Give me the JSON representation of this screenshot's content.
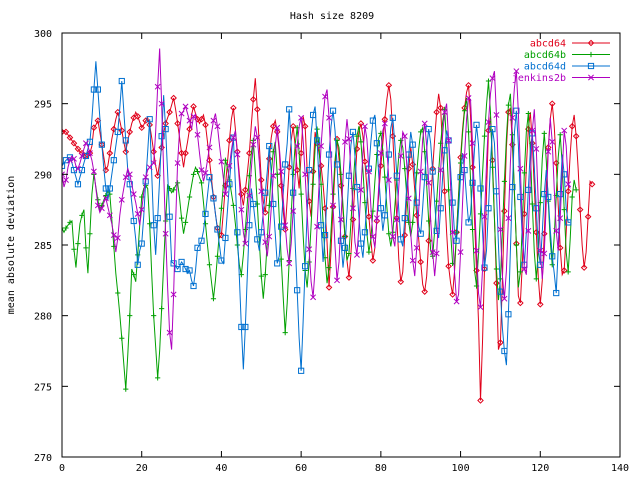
{
  "chart_data": {
    "type": "line",
    "title": "Hash size 8209",
    "xlabel": "",
    "ylabel": "mean absolute deviation",
    "xlim": [
      0,
      140
    ],
    "ylim": [
      270,
      300
    ],
    "xticks": [
      0,
      20,
      40,
      60,
      80,
      100,
      120,
      140
    ],
    "yticks": [
      270,
      275,
      280,
      285,
      290,
      295,
      300
    ],
    "xtick_labels": [
      "0",
      "20",
      "40",
      "60",
      "80",
      "100",
      "120",
      "140"
    ],
    "ytick_labels": [
      "270",
      "275",
      "280",
      "285",
      "290",
      "295",
      "300"
    ],
    "grid": false,
    "legend_position": "top-right",
    "x_start": 0,
    "x_step": 0.5,
    "series": [
      {
        "name": "abcd64",
        "color": "#e0001a",
        "marker": "diamond",
        "values": [
          293.0,
          293.1,
          293.0,
          292.8,
          292.6,
          292.4,
          292.2,
          292.0,
          291.8,
          291.6,
          291.5,
          291.4,
          291.3,
          291.2,
          291.5,
          292.0,
          293.3,
          293.5,
          293.8,
          293.0,
          292.1,
          291.2,
          290.3,
          290.6,
          291.5,
          292.5,
          293.2,
          293.9,
          294.4,
          293.8,
          293.1,
          292.3,
          291.6,
          292.4,
          293.0,
          293.6,
          294.0,
          294.4,
          294.1,
          293.7,
          293.3,
          293.5,
          293.8,
          294.0,
          293.5,
          292.6,
          291.6,
          290.6,
          289.9,
          290.8,
          291.9,
          292.9,
          293.6,
          294.0,
          294.4,
          294.9,
          295.4,
          294.6,
          293.6,
          292.6,
          291.5,
          290.5,
          291.5,
          292.3,
          293.2,
          294.2,
          294.8,
          294.3,
          293.9,
          293.6,
          293.9,
          294.2,
          293.5,
          292.3,
          291.0,
          289.7,
          288.4,
          287.2,
          286.2,
          285.5,
          285.7,
          287.4,
          289.2,
          290.8,
          292.4,
          293.9,
          294.7,
          293.2,
          291.6,
          290.0,
          288.6,
          287.8,
          288.9,
          290.1,
          291.5,
          293.5,
          295.3,
          296.8,
          294.6,
          292.1,
          289.6,
          288.1,
          287.3,
          288.8,
          291.1,
          292.6,
          293.4,
          293.8,
          293.0,
          291.7,
          289.2,
          287.4,
          286.1,
          288.2,
          290.5,
          292.4,
          293.4,
          292.0,
          290.3,
          289.0,
          291.5,
          294.1,
          293.4,
          290.4,
          288.1,
          287.0,
          290.2,
          293.0,
          292.2,
          291.5,
          290.6,
          289.3,
          287.6,
          285.2,
          282.0,
          284.6,
          287.7,
          290.4,
          292.5,
          291.1,
          289.2,
          287.4,
          285.6,
          283.9,
          282.7,
          284.4,
          286.8,
          289.4,
          291.8,
          293.0,
          293.6,
          292.7,
          290.9,
          289.0,
          287.0,
          285.3,
          283.9,
          284.8,
          286.7,
          288.7,
          290.6,
          292.2,
          293.9,
          295.3,
          296.3,
          295.3,
          292.7,
          289.7,
          286.9,
          284.0,
          282.4,
          283.1,
          285.7,
          288.4,
          290.4,
          291.9,
          290.7,
          288.9,
          287.1,
          285.4,
          283.8,
          282.2,
          281.7,
          282.8,
          285.3,
          287.9,
          290.4,
          292.5,
          294.4,
          295.7,
          294.7,
          291.7,
          288.8,
          285.9,
          283.5,
          282.3,
          281.5,
          283.2,
          285.9,
          288.6,
          291.2,
          293.2,
          294.7,
          295.8,
          296.3,
          294.1,
          290.5,
          286.8,
          283.2,
          279.6,
          274.0,
          278.1,
          283.3,
          288.6,
          293.1,
          294.1,
          291.0,
          287.0,
          282.3,
          277.6,
          278.1,
          282.6,
          287.4,
          291.9,
          294.4,
          294.7,
          292.1,
          288.7,
          285.1,
          281.4,
          280.9,
          283.7,
          287.2,
          290.5,
          293.2,
          294.4,
          292.2,
          289.1,
          285.9,
          282.7,
          280.8,
          282.5,
          285.8,
          289.1,
          291.9,
          293.9,
          295.0,
          293.4,
          290.8,
          287.8,
          284.8,
          282.9,
          283.2,
          285.9,
          288.8,
          291.4,
          293.4,
          294.2,
          292.7,
          290.4,
          287.5,
          285.0,
          283.4,
          284.5,
          287.0,
          289.5,
          289.3
        ]
      },
      {
        "name": "abcd64b",
        "color": "#00a000",
        "marker": "plus",
        "values": [
          286.2,
          285.9,
          286.2,
          286.4,
          286.6,
          286.7,
          284.7,
          283.4,
          285.1,
          286.5,
          287.1,
          287.5,
          284.8,
          283.0,
          285.8,
          288.6,
          290.0,
          289.1,
          288.2,
          287.4,
          287.8,
          288.2,
          288.5,
          288.8,
          288.6,
          286.8,
          284.9,
          283.0,
          281.6,
          280.1,
          278.4,
          276.6,
          274.8,
          277.2,
          280.0,
          283.3,
          282.9,
          282.4,
          284.3,
          286.4,
          288.4,
          289.0,
          289.2,
          289.0,
          286.5,
          283.0,
          280.0,
          277.8,
          275.6,
          277.5,
          280.5,
          283.6,
          286.7,
          289.3,
          289.0,
          288.7,
          288.9,
          289.2,
          289.4,
          288.3,
          286.9,
          285.8,
          286.6,
          287.5,
          288.4,
          289.2,
          290.0,
          290.5,
          290.2,
          289.8,
          289.4,
          288.0,
          286.5,
          285.0,
          283.6,
          282.4,
          281.2,
          282.5,
          284.2,
          285.9,
          287.6,
          289.3,
          291.0,
          290.5,
          289.6,
          288.7,
          287.8,
          286.5,
          285.0,
          283.6,
          282.9,
          284.3,
          286.1,
          288.0,
          289.9,
          291.5,
          292.4,
          290.2,
          287.9,
          285.3,
          282.8,
          281.2,
          282.9,
          285.3,
          287.8,
          290.1,
          291.6,
          292.3,
          290.0,
          287.0,
          284.0,
          281.3,
          278.8,
          280.9,
          283.9,
          287.1,
          290.0,
          292.1,
          293.3,
          291.5,
          288.6,
          285.7,
          283.2,
          282.0,
          283.8,
          286.4,
          289.3,
          291.8,
          293.2,
          292.0,
          289.3,
          286.6,
          284.1,
          282.3,
          283.4,
          286.0,
          288.6,
          291.0,
          292.4,
          291.9,
          290.0,
          287.8,
          285.6,
          283.9,
          284.4,
          286.6,
          289.0,
          291.2,
          292.7,
          293.4,
          292.3,
          290.3,
          288.0,
          285.8,
          284.5,
          285.4,
          287.4,
          289.5,
          291.4,
          292.6,
          292.9,
          291.7,
          289.8,
          287.7,
          285.8,
          284.9,
          285.9,
          287.7,
          289.6,
          291.3,
          292.4,
          291.9,
          290.4,
          288.5,
          286.6,
          285.6,
          286.6,
          288.3,
          290.1,
          291.8,
          293.0,
          293.3,
          291.6,
          289.2,
          286.7,
          284.6,
          284.2,
          286.0,
          288.1,
          290.2,
          292.2,
          293.7,
          294.6,
          292.1,
          288.9,
          285.9,
          283.7,
          283.6,
          285.9,
          288.4,
          290.8,
          292.9,
          294.5,
          295.4,
          293.0,
          289.6,
          286.1,
          283.2,
          282.1,
          284.4,
          287.2,
          290.0,
          292.7,
          294.9,
          296.6,
          294.4,
          290.5,
          286.8,
          283.3,
          281.1,
          282.6,
          286.0,
          289.5,
          292.6,
          294.9,
          295.7,
          292.8,
          288.8,
          285.0,
          282.0,
          283.1,
          286.5,
          290.1,
          293.0,
          294.3,
          291.6,
          287.9,
          284.5,
          282.6,
          284.6,
          288.0,
          291.1,
          292.9,
          291.0,
          288.1,
          285.3,
          283.6,
          285.6,
          288.5,
          291.2,
          292.8,
          290.7,
          287.5,
          284.5,
          283.1,
          285.4,
          288.4,
          289.6,
          288.9
        ]
      },
      {
        "name": "abcd64d",
        "color": "#0070d0",
        "marker": "square",
        "values": [
          290.6,
          290.8,
          291.0,
          291.1,
          291.2,
          290.8,
          290.3,
          289.8,
          289.3,
          289.8,
          290.3,
          290.8,
          291.3,
          291.8,
          292.3,
          293.9,
          296.0,
          298.0,
          296.0,
          294.0,
          292.1,
          290.4,
          289.0,
          288.2,
          289.0,
          290.0,
          291.0,
          292.0,
          293.0,
          294.7,
          296.6,
          294.5,
          292.4,
          290.3,
          289.3,
          288.0,
          286.7,
          285.4,
          283.6,
          284.6,
          285.1,
          287.0,
          289.5,
          291.6,
          293.9,
          290.1,
          286.4,
          284.3,
          286.9,
          289.7,
          292.7,
          295.6,
          293.2,
          290.1,
          287.0,
          283.8,
          283.7,
          283.5,
          283.3,
          283.5,
          283.8,
          283.6,
          283.3,
          283.0,
          283.2,
          282.5,
          282.1,
          283.2,
          284.8,
          285.0,
          285.3,
          286.0,
          287.2,
          288.5,
          289.8,
          289.4,
          288.3,
          287.2,
          286.1,
          285.0,
          283.9,
          283.7,
          285.5,
          287.4,
          289.3,
          291.2,
          292.6,
          289.3,
          285.9,
          282.7,
          279.2,
          276.2,
          279.2,
          282.9,
          286.4,
          289.0,
          287.9,
          286.6,
          285.4,
          284.6,
          285.9,
          287.3,
          288.7,
          290.2,
          292.0,
          290.1,
          287.9,
          285.8,
          283.7,
          284.2,
          286.3,
          288.6,
          290.7,
          292.2,
          294.6,
          292.1,
          288.7,
          285.2,
          281.8,
          278.4,
          276.1,
          279.6,
          283.5,
          287.2,
          290.3,
          292.9,
          294.2,
          294.8,
          292.4,
          289.4,
          286.4,
          283.8,
          285.7,
          288.6,
          291.4,
          293.4,
          294.5,
          293.1,
          290.7,
          288.0,
          285.3,
          283.4,
          284.8,
          287.3,
          289.9,
          292.1,
          293.0,
          291.3,
          289.1,
          287.0,
          285.1,
          284.1,
          285.9,
          288.1,
          290.4,
          292.3,
          293.8,
          294.2,
          292.2,
          289.8,
          287.6,
          286.0,
          287.1,
          289.2,
          291.4,
          293.3,
          294.0,
          292.2,
          289.9,
          287.5,
          285.4,
          284.9,
          286.9,
          289.2,
          291.4,
          293.0,
          292.1,
          290.1,
          288.0,
          286.3,
          285.8,
          287.7,
          289.8,
          291.8,
          293.2,
          292.2,
          290.2,
          288.0,
          286.0,
          285.5,
          287.6,
          289.8,
          291.7,
          293.1,
          292.4,
          290.4,
          288.0,
          285.8,
          285.3,
          287.5,
          289.8,
          291.5,
          290.3,
          288.3,
          286.6,
          287.2,
          289.4,
          291.8,
          293.5,
          292.1,
          289.0,
          286.0,
          283.4,
          284.6,
          287.6,
          290.8,
          293.2,
          292.2,
          288.8,
          285.0,
          281.7,
          279.1,
          277.5,
          276.5,
          280.1,
          284.6,
          289.1,
          292.9,
          294.5,
          292.1,
          288.4,
          285.4,
          283.6,
          285.9,
          288.9,
          291.7,
          292.9,
          290.5,
          287.6,
          284.8,
          283.6,
          285.9,
          288.6,
          290.3,
          288.4,
          286.1,
          284.2,
          283.0,
          281.6,
          284.8,
          288.6,
          291.4,
          290.0,
          287.6,
          286.6,
          286.6
        ]
      },
      {
        "name": "jenkins2b",
        "color": "#b000c0",
        "marker": "cross",
        "values": [
          290.0,
          289.1,
          289.6,
          290.5,
          291.0,
          291.3,
          291.1,
          290.6,
          290.4,
          290.8,
          291.3,
          291.8,
          292.2,
          292.0,
          291.5,
          291.0,
          290.2,
          289.0,
          287.8,
          287.3,
          287.6,
          288.0,
          288.3,
          287.7,
          287.1,
          286.5,
          285.7,
          284.5,
          285.5,
          287.1,
          288.2,
          289.0,
          289.8,
          290.4,
          290.0,
          289.3,
          288.6,
          288.0,
          287.2,
          286.4,
          287.5,
          288.7,
          289.8,
          290.3,
          290.5,
          290.7,
          290.8,
          293.0,
          296.2,
          298.9,
          295.0,
          290.2,
          285.8,
          282.0,
          278.8,
          277.6,
          281.5,
          286.5,
          290.8,
          293.1,
          294.3,
          294.5,
          294.8,
          294.3,
          293.8,
          293.2,
          294.1,
          294.2,
          292.8,
          291.5,
          290.3,
          289.5,
          290.1,
          291.0,
          291.9,
          292.9,
          293.8,
          294.3,
          293.4,
          292.1,
          290.9,
          289.7,
          288.6,
          289.4,
          290.6,
          291.7,
          292.6,
          293.1,
          291.4,
          289.5,
          287.5,
          285.9,
          285.1,
          286.6,
          288.5,
          290.4,
          292.1,
          293.4,
          292.6,
          290.9,
          288.8,
          286.8,
          285.2,
          284.2,
          285.6,
          287.6,
          289.9,
          292.0,
          293.3,
          292.0,
          290.2,
          288.3,
          286.4,
          284.7,
          283.7,
          285.1,
          287.4,
          289.8,
          292.0,
          293.4,
          294.0,
          292.4,
          290.0,
          287.3,
          284.7,
          282.4,
          281.3,
          283.3,
          286.3,
          289.3,
          292.0,
          294.0,
          295.5,
          296.0,
          294.0,
          291.0,
          287.8,
          284.9,
          282.5,
          283.8,
          286.8,
          289.7,
          292.3,
          293.9,
          292.5,
          290.2,
          287.6,
          285.2,
          284.3,
          286.3,
          288.9,
          291.5,
          293.4,
          292.5,
          290.2,
          287.7,
          285.6,
          284.8,
          286.9,
          289.3,
          291.5,
          293.1,
          293.6,
          291.9,
          289.6,
          287.4,
          285.6,
          284.9,
          286.8,
          289.1,
          291.3,
          293.0,
          292.7,
          290.7,
          288.3,
          285.8,
          283.9,
          282.8,
          284.8,
          287.5,
          290.2,
          292.5,
          293.6,
          292.0,
          289.4,
          286.8,
          284.5,
          282.8,
          284.4,
          287.3,
          290.3,
          292.8,
          294.4,
          295.0,
          292.4,
          289.2,
          285.9,
          283.0,
          281.0,
          281.5,
          284.5,
          288.0,
          291.3,
          293.9,
          295.4,
          295.3,
          292.2,
          288.3,
          284.6,
          281.6,
          280.6,
          283.2,
          287.0,
          290.7,
          293.7,
          295.7,
          296.8,
          297.3,
          294.2,
          290.1,
          286.1,
          282.8,
          281.2,
          283.2,
          286.9,
          290.8,
          294.0,
          296.1,
          297.3,
          294.4,
          290.4,
          286.4,
          283.3,
          282.9,
          286.0,
          289.8,
          293.1,
          294.6,
          291.8,
          288.0,
          284.6,
          282.6,
          284.4,
          288.0,
          291.6,
          294.0,
          292.3,
          289.0,
          286.0,
          284.6,
          286.9,
          290.2,
          293.1,
          292.0,
          289.3,
          289.0
        ]
      }
    ]
  }
}
